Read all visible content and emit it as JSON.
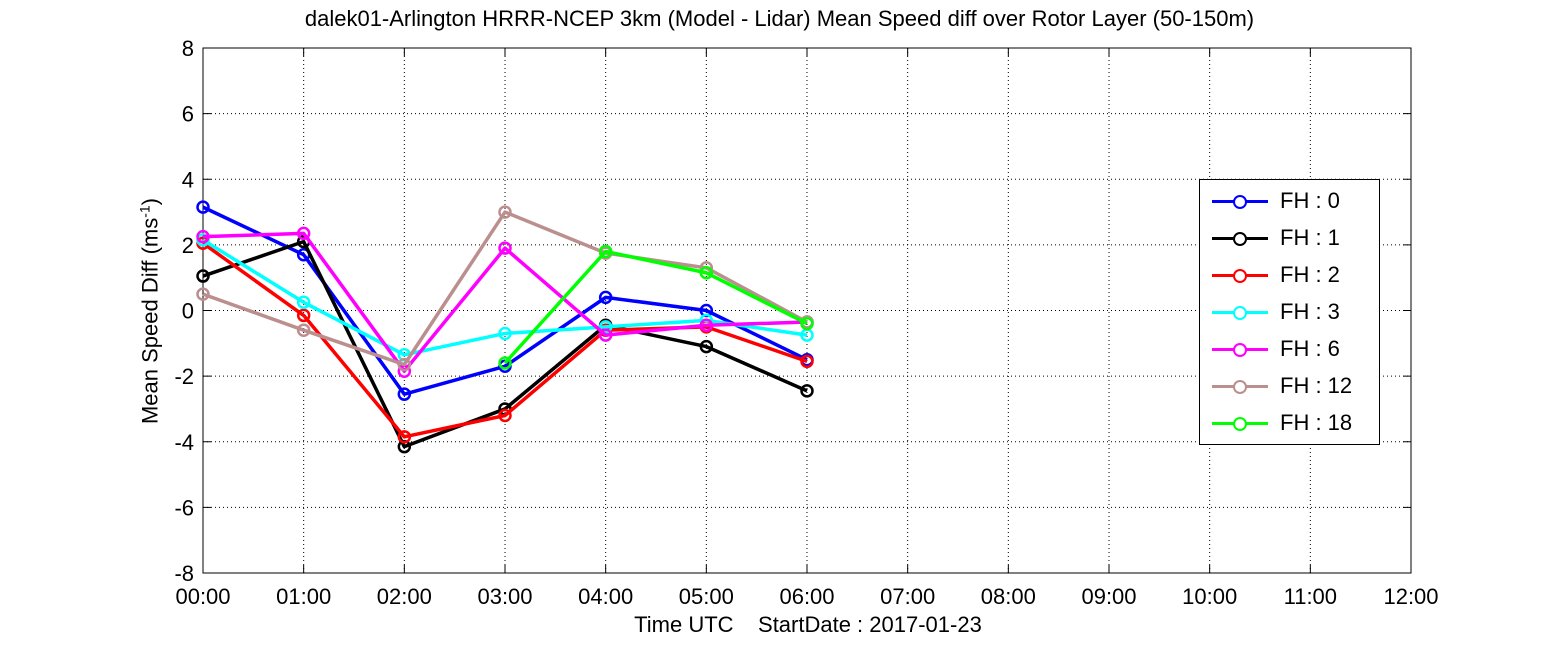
{
  "chart_data": {
    "type": "line",
    "title": "dalek01-Arlington HRRR-NCEP 3km (Model - Lidar) Mean Speed diff over Rotor Layer (50-150m)",
    "xlabel": "Time UTC    StartDate : 2017-01-23",
    "ylabel": {
      "text": "Mean Speed Diff (ms",
      "sup": "-1",
      "close": ")"
    },
    "xlim": [
      0,
      12
    ],
    "ylim": [
      -8,
      8
    ],
    "x_ticks": [
      0,
      1,
      2,
      3,
      4,
      5,
      6,
      7,
      8,
      9,
      10,
      11,
      12
    ],
    "x_tick_labels": [
      "00:00",
      "01:00",
      "02:00",
      "03:00",
      "04:00",
      "05:00",
      "06:00",
      "07:00",
      "08:00",
      "09:00",
      "10:00",
      "11:00",
      "12:00"
    ],
    "y_ticks": [
      -8,
      -6,
      -4,
      -2,
      0,
      2,
      4,
      6,
      8
    ],
    "y_tick_labels": [
      "-8",
      "-6",
      "-4",
      "-2",
      "0",
      "2",
      "4",
      "6",
      "8"
    ],
    "grid": true,
    "legend_position": "right",
    "series": [
      {
        "name": "FH : 0",
        "color": "#0000ff",
        "x": [
          0,
          1,
          2,
          3,
          4,
          5,
          6
        ],
        "values": [
          3.15,
          1.7,
          -2.55,
          -1.7,
          0.4,
          0.0,
          -1.5
        ]
      },
      {
        "name": "FH : 1",
        "color": "#000000",
        "x": [
          0,
          1,
          2,
          3,
          4,
          5,
          6
        ],
        "values": [
          1.05,
          2.1,
          -4.15,
          -3.0,
          -0.45,
          -1.1,
          -2.45
        ]
      },
      {
        "name": "FH : 2",
        "color": "#ff0000",
        "x": [
          0,
          1,
          2,
          3,
          4,
          5,
          6
        ],
        "values": [
          2.05,
          -0.15,
          -3.85,
          -3.2,
          -0.6,
          -0.5,
          -1.55
        ]
      },
      {
        "name": "FH : 3",
        "color": "#00ffff",
        "x": [
          0,
          1,
          2,
          3,
          4,
          5,
          6
        ],
        "values": [
          2.15,
          0.25,
          -1.35,
          -0.7,
          -0.5,
          -0.3,
          -0.75
        ]
      },
      {
        "name": "FH : 6",
        "color": "#ff00ff",
        "x": [
          0,
          1,
          2,
          3,
          4,
          5,
          6
        ],
        "values": [
          2.25,
          2.35,
          -1.85,
          1.9,
          -0.75,
          -0.45,
          -0.35
        ]
      },
      {
        "name": "FH : 12",
        "color": "#bc8f8f",
        "x": [
          0,
          1,
          2,
          3,
          4,
          5,
          6
        ],
        "values": [
          0.5,
          -0.6,
          -1.65,
          3.0,
          1.75,
          1.3,
          -0.35
        ]
      },
      {
        "name": "FH : 18",
        "color": "#00ff00",
        "x": [
          3,
          4,
          5,
          6
        ],
        "values": [
          -1.6,
          1.8,
          1.15,
          -0.4
        ]
      }
    ]
  }
}
